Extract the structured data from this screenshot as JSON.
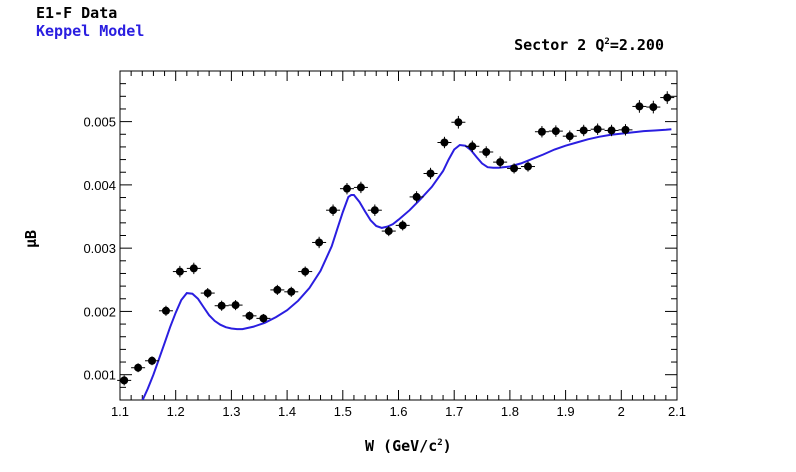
{
  "chart_data": {
    "type": "scatter",
    "title": "Sector 2 Q^2=2.200",
    "title_parts": {
      "prefix": "Sector 2 Q",
      "sup": "2",
      "suffix": "=2.200"
    },
    "xlabel_parts": {
      "prefix": "W (GeV/c",
      "sup": "2",
      "suffix": ")"
    },
    "ylabel": "μB",
    "xlim": [
      1.1,
      2.1
    ],
    "ylim": [
      0.0006,
      0.0058
    ],
    "x_ticks": [
      "1.1",
      "1.2",
      "1.3",
      "1.4",
      "1.5",
      "1.6",
      "1.7",
      "1.8",
      "1.9",
      "2",
      "2.1"
    ],
    "y_ticks": [
      "0.001",
      "0.002",
      "0.003",
      "0.004",
      "0.005"
    ],
    "legend": [
      {
        "label": "E1-F Data",
        "color": "#000000"
      },
      {
        "label": "Keppel Model",
        "color": "#2a1ee0"
      }
    ],
    "series": [
      {
        "name": "E1-F Data",
        "color": "#000000",
        "x": [
          1.1075,
          1.1325,
          1.1575,
          1.1825,
          1.2075,
          1.2325,
          1.2575,
          1.2825,
          1.3075,
          1.3325,
          1.3575,
          1.3825,
          1.4075,
          1.4325,
          1.4575,
          1.4825,
          1.5075,
          1.5325,
          1.5575,
          1.5825,
          1.6075,
          1.6325,
          1.6575,
          1.6825,
          1.7075,
          1.7325,
          1.7575,
          1.7825,
          1.8075,
          1.8325,
          1.8575,
          1.8825,
          1.9075,
          1.9325,
          1.9575,
          1.9825,
          2.0075,
          2.0325,
          2.0575,
          2.0825
        ],
        "y": [
          0.00091,
          0.00111,
          0.00122,
          0.00201,
          0.00263,
          0.00268,
          0.00229,
          0.00209,
          0.0021,
          0.00193,
          0.00189,
          0.00234,
          0.00231,
          0.00263,
          0.00309,
          0.0036,
          0.00394,
          0.00396,
          0.0036,
          0.00327,
          0.00336,
          0.00381,
          0.00418,
          0.00467,
          0.00499,
          0.00461,
          0.00452,
          0.00436,
          0.00426,
          0.00429,
          0.00484,
          0.00485,
          0.00477,
          0.00486,
          0.00488,
          0.00486,
          0.00487,
          0.00524,
          0.00523,
          0.00538
        ],
        "err": [
          8e-05,
          7e-05,
          7e-05,
          8e-05,
          9e-05,
          9e-05,
          8e-05,
          8e-05,
          8e-05,
          7e-05,
          7e-05,
          8e-05,
          8e-05,
          8e-05,
          9e-05,
          9e-05,
          9e-05,
          9e-05,
          9e-05,
          8e-05,
          8e-05,
          9e-05,
          9e-05,
          9e-05,
          0.0001,
          9e-05,
          9e-05,
          9e-05,
          8e-05,
          8e-05,
          9e-05,
          9e-05,
          9e-05,
          9e-05,
          9e-05,
          9e-05,
          9e-05,
          0.0001,
          0.0001,
          0.0001
        ]
      },
      {
        "name": "Keppel Model",
        "color": "#2a1ee0",
        "x": [
          1.138,
          1.15,
          1.16,
          1.17,
          1.18,
          1.19,
          1.2,
          1.21,
          1.22,
          1.23,
          1.24,
          1.25,
          1.26,
          1.27,
          1.28,
          1.29,
          1.3,
          1.31,
          1.32,
          1.34,
          1.36,
          1.38,
          1.4,
          1.42,
          1.44,
          1.46,
          1.48,
          1.49,
          1.5,
          1.51,
          1.515,
          1.52,
          1.53,
          1.54,
          1.55,
          1.56,
          1.57,
          1.58,
          1.59,
          1.6,
          1.62,
          1.64,
          1.66,
          1.68,
          1.69,
          1.7,
          1.71,
          1.72,
          1.73,
          1.74,
          1.75,
          1.76,
          1.77,
          1.78,
          1.8,
          1.82,
          1.84,
          1.86,
          1.88,
          1.9,
          1.92,
          1.94,
          1.96,
          1.98,
          2.0,
          2.02,
          2.04,
          2.06,
          2.08,
          2.09
        ],
        "y": [
          0.00055,
          0.00078,
          0.001,
          0.00125,
          0.0015,
          0.00175,
          0.00198,
          0.00218,
          0.00229,
          0.00228,
          0.0022,
          0.00207,
          0.00194,
          0.00185,
          0.00179,
          0.00175,
          0.00173,
          0.00172,
          0.00172,
          0.00176,
          0.00182,
          0.00191,
          0.00202,
          0.00217,
          0.00237,
          0.00264,
          0.00303,
          0.0033,
          0.00357,
          0.00381,
          0.00384,
          0.00384,
          0.00373,
          0.00358,
          0.00344,
          0.00335,
          0.00332,
          0.00334,
          0.00338,
          0.00345,
          0.0036,
          0.00378,
          0.00397,
          0.00422,
          0.0044,
          0.00456,
          0.00463,
          0.00462,
          0.00455,
          0.00444,
          0.00434,
          0.00428,
          0.00427,
          0.00427,
          0.00429,
          0.00434,
          0.00441,
          0.00448,
          0.00456,
          0.00462,
          0.00467,
          0.00472,
          0.00476,
          0.00479,
          0.00481,
          0.00483,
          0.00485,
          0.00486,
          0.00487,
          0.00488
        ]
      }
    ]
  }
}
